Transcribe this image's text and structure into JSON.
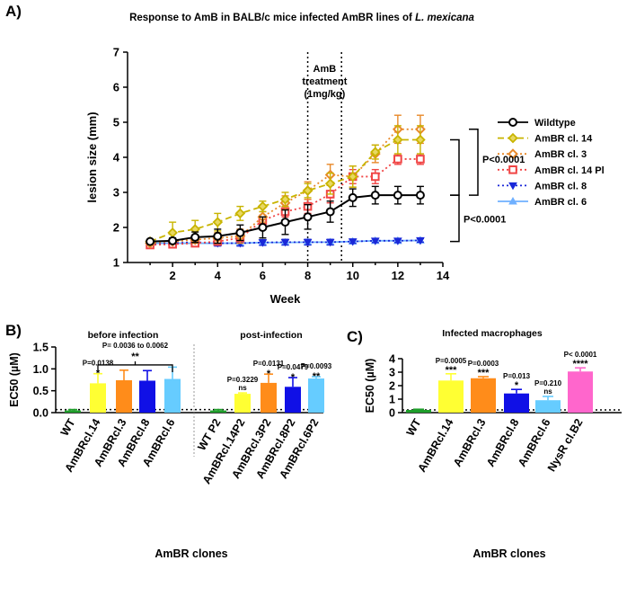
{
  "panels": {
    "a": "A)",
    "b": "B)",
    "c": "C)"
  },
  "chart_data": [
    {
      "type": "line",
      "title_prefix": "Response to AmB in BALB/c mice infected AmBR lines of ",
      "title_italic": "L. mexicana",
      "xlabel": "Week",
      "ylabel": "lesion size (mm)",
      "xlim": [
        0,
        14
      ],
      "ylim": [
        1,
        7
      ],
      "xticks": [
        2,
        4,
        6,
        8,
        10,
        12,
        14
      ],
      "yticks": [
        1,
        2,
        3,
        4,
        5,
        6,
        7
      ],
      "treatment": {
        "lines_at": [
          8,
          9.5
        ],
        "label": [
          "AmB",
          "treatment",
          "(1mg/kg)"
        ]
      },
      "series": [
        {
          "name": "Wildtype",
          "color": "#000000",
          "marker": "circle",
          "dash": "",
          "x": [
            1,
            2,
            3,
            4,
            5,
            6,
            7,
            8,
            9,
            10,
            11,
            12,
            13
          ],
          "y": [
            1.6,
            1.62,
            1.72,
            1.75,
            1.85,
            2.0,
            2.15,
            2.3,
            2.45,
            2.85,
            2.92,
            2.92,
            2.92
          ],
          "err": [
            0.05,
            0.08,
            0.15,
            0.2,
            0.22,
            0.3,
            0.35,
            0.35,
            0.3,
            0.25,
            0.25,
            0.25,
            0.25
          ]
        },
        {
          "name": "AmBR cl. 14",
          "color": "#c8b400",
          "marker": "diamond",
          "dash": "7,4",
          "x": [
            1,
            2,
            3,
            4,
            5,
            6,
            7,
            8,
            9,
            10,
            11,
            12,
            13
          ],
          "y": [
            1.6,
            1.85,
            1.95,
            2.15,
            2.4,
            2.6,
            2.8,
            3.05,
            3.25,
            3.45,
            4.15,
            4.5,
            4.5
          ],
          "err": [
            0.05,
            0.3,
            0.25,
            0.25,
            0.2,
            0.15,
            0.2,
            0.2,
            0.3,
            0.3,
            0.2,
            0.4,
            0.4
          ]
        },
        {
          "name": "AmBR cl. 3",
          "color": "#e8892a",
          "marker": "diamond-open",
          "dash": "2,3",
          "x": [
            1,
            2,
            3,
            4,
            5,
            6,
            7,
            8,
            9,
            10,
            11,
            12,
            13
          ],
          "y": [
            1.55,
            1.6,
            1.65,
            1.7,
            1.75,
            2.3,
            2.7,
            3.05,
            3.5,
            3.45,
            4.1,
            4.8,
            4.8
          ],
          "err": [
            0.05,
            0.05,
            0.1,
            0.15,
            0.2,
            0.15,
            0.2,
            0.25,
            0.3,
            0.3,
            0.25,
            0.4,
            0.4
          ]
        },
        {
          "name": "AmBR cl. 14 Pl",
          "color": "#f04444",
          "marker": "square-open",
          "dash": "2,3",
          "x": [
            1,
            2,
            3,
            4,
            5,
            6,
            7,
            8,
            9,
            10,
            11,
            12,
            13
          ],
          "y": [
            1.5,
            1.52,
            1.55,
            1.6,
            1.7,
            2.2,
            2.45,
            2.6,
            2.95,
            3.45,
            3.45,
            3.95,
            3.95
          ],
          "err": [
            0.05,
            0.05,
            0.08,
            0.1,
            0.1,
            0.15,
            0.15,
            0.2,
            0.25,
            0.2,
            0.2,
            0.15,
            0.15
          ]
        },
        {
          "name": "AmBR cl. 8",
          "color": "#1a28d8",
          "marker": "triangle-down",
          "dash": "2,3",
          "x": [
            1,
            2,
            3,
            4,
            5,
            6,
            7,
            8,
            9,
            10,
            11,
            12,
            13
          ],
          "y": [
            1.55,
            1.55,
            1.58,
            1.55,
            1.55,
            1.57,
            1.58,
            1.58,
            1.58,
            1.6,
            1.62,
            1.62,
            1.63
          ],
          "err": [
            0.03,
            0.03,
            0.05,
            0.08,
            0.08,
            0.08,
            0.08,
            0.08,
            0.08,
            0.05,
            0.05,
            0.05,
            0.05
          ]
        },
        {
          "name": "AmBR cl. 6",
          "color": "#6fb0ff",
          "marker": "triangle-up",
          "dash": "",
          "x": [
            1,
            2,
            3,
            4,
            5,
            6,
            7,
            8,
            9,
            10,
            11,
            12,
            13
          ],
          "y": [
            1.55,
            1.55,
            1.55,
            1.55,
            1.55,
            1.57,
            1.57,
            1.58,
            1.58,
            1.6,
            1.62,
            1.62,
            1.63
          ],
          "err": [
            0,
            0,
            0,
            0,
            0,
            0,
            0,
            0,
            0,
            0,
            0,
            0,
            0
          ]
        }
      ],
      "significance": [
        "P<0.0001",
        "P<0.0001"
      ]
    },
    {
      "type": "bar",
      "ylabel_main": "EC50 (",
      "ylabel_unit": "µM",
      "ylabel_close": ")",
      "xlabel": "AmBR clones",
      "ylim": [
        0,
        1.5
      ],
      "yticks": [
        0.0,
        0.5,
        1.0,
        1.5
      ],
      "ytick_labels": [
        "0.0",
        "0.5",
        "1.0",
        "1.5"
      ],
      "reference_line": 0.07,
      "groups": [
        {
          "title": "before infection",
          "categories": [
            "WT",
            "AmBRcl.14",
            "AmBRcl.3",
            "AmBRcl.8",
            "AmBRcl.6"
          ],
          "values": [
            0.05,
            0.67,
            0.74,
            0.73,
            0.77
          ],
          "errors": [
            0.02,
            0.22,
            0.23,
            0.23,
            0.27
          ],
          "colors": [
            "#1e9e2a",
            "#ffff33",
            "#ff8c1a",
            "#1010e6",
            "#66ccff"
          ],
          "stars": [
            "",
            "*",
            "",
            "",
            ""
          ],
          "pvalues": [
            "",
            "P=0.0138",
            "",
            "",
            ""
          ],
          "bracket": {
            "label": "P= 0.0036 to 0.0062",
            "stars": "**"
          }
        },
        {
          "title": "post-infection",
          "categories": [
            "WT P2",
            "AmBRcl.14P2",
            "AmBRcl.3P2",
            "AmBRcl.8P2",
            "AmBRcl.6P2"
          ],
          "values": [
            0.05,
            0.43,
            0.68,
            0.59,
            0.78
          ],
          "errors": [
            0.02,
            0.02,
            0.2,
            0.21,
            0.04
          ],
          "colors": [
            "#1e9e2a",
            "#ffff33",
            "#ff8c1a",
            "#1010e6",
            "#66ccff"
          ],
          "stars": [
            "",
            "ns",
            "*",
            "*",
            "**"
          ],
          "pvalues": [
            "",
            "P=0.3229",
            "P=0.0131",
            "P=0.0479",
            "P=0.0093"
          ]
        }
      ]
    },
    {
      "type": "bar",
      "title": "Infected macrophages",
      "ylabel_main": "EC50 (",
      "ylabel_unit": "µM",
      "ylabel_close": ")",
      "xlabel": "AmBR clones",
      "ylim": [
        0,
        4
      ],
      "yticks": [
        0,
        1,
        2,
        3,
        4
      ],
      "ytick_labels": [
        "0",
        "1",
        "2",
        "3",
        "4"
      ],
      "reference_line": 0.2,
      "categories": [
        "WT",
        "AmBRcl.14",
        "AmBRcl.3",
        "AmBRcl.8",
        "AmBRcl.6",
        "NysR cl.B2"
      ],
      "values": [
        0.2,
        2.38,
        2.55,
        1.42,
        0.92,
        3.05
      ],
      "errors": [
        0.05,
        0.5,
        0.12,
        0.3,
        0.28,
        0.27
      ],
      "colors": [
        "#1e9e2a",
        "#ffff33",
        "#ff8c1a",
        "#1010e6",
        "#66ccff",
        "#ff66cc"
      ],
      "stars": [
        "",
        "***",
        "***",
        "*",
        "ns",
        "****"
      ],
      "pvalues": [
        "",
        "P=0.0005",
        "P=0.0003",
        "P=0.013",
        "P=0.210",
        "P< 0.0001"
      ]
    }
  ]
}
